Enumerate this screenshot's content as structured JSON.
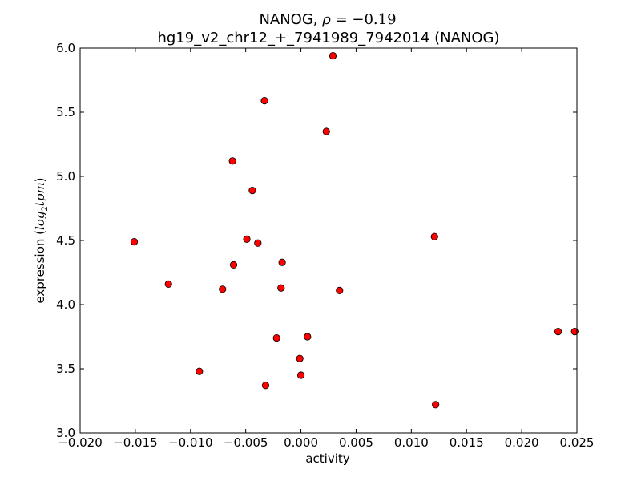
{
  "chart_data": {
    "type": "scatter",
    "title_prefix": "NANOG, ",
    "title_rho_symbol": "ρ",
    "title_rho_equals": " = ",
    "title_rho_value": "−0.19",
    "subtitle": "hg19_v2_chr12_+_7941989_7942014 (NANOG)",
    "xlabel": "activity",
    "ylabel_text": "expression (",
    "ylabel_math_log": "log",
    "ylabel_math_sub": "2",
    "ylabel_math_tpm": "tpm",
    "ylabel_close": ")",
    "xlim": [
      -0.02,
      0.025
    ],
    "ylim": [
      3.0,
      6.0
    ],
    "xticks": [
      -0.02,
      -0.015,
      -0.01,
      -0.005,
      0.0,
      0.005,
      0.01,
      0.015,
      0.02,
      0.025
    ],
    "xtick_labels": [
      "−0.020",
      "−0.015",
      "−0.010",
      "−0.005",
      "0.000",
      "0.005",
      "0.010",
      "0.015",
      "0.020",
      "0.025"
    ],
    "yticks": [
      3.0,
      3.5,
      4.0,
      4.5,
      5.0,
      5.5,
      6.0
    ],
    "ytick_labels": [
      "3.0",
      "3.5",
      "4.0",
      "4.5",
      "5.0",
      "5.5",
      "6.0"
    ],
    "marker_color": "#ff0000",
    "marker_edge": "#000000",
    "points": [
      {
        "x": 0.0029,
        "y": 5.94
      },
      {
        "x": -0.0033,
        "y": 5.59
      },
      {
        "x": 0.0023,
        "y": 5.35
      },
      {
        "x": -0.0062,
        "y": 5.12
      },
      {
        "x": -0.0044,
        "y": 4.89
      },
      {
        "x": 0.0121,
        "y": 4.53
      },
      {
        "x": -0.0151,
        "y": 4.49
      },
      {
        "x": -0.0049,
        "y": 4.51
      },
      {
        "x": -0.0039,
        "y": 4.48
      },
      {
        "x": -0.0061,
        "y": 4.31
      },
      {
        "x": -0.0017,
        "y": 4.33
      },
      {
        "x": -0.012,
        "y": 4.16
      },
      {
        "x": -0.0071,
        "y": 4.12
      },
      {
        "x": -0.0018,
        "y": 4.13
      },
      {
        "x": 0.0035,
        "y": 4.11
      },
      {
        "x": 0.0233,
        "y": 3.79
      },
      {
        "x": 0.0248,
        "y": 3.79
      },
      {
        "x": 0.0006,
        "y": 3.75
      },
      {
        "x": -0.0022,
        "y": 3.74
      },
      {
        "x": -0.0001,
        "y": 3.58
      },
      {
        "x": -0.0092,
        "y": 3.48
      },
      {
        "x": 0.0,
        "y": 3.45
      },
      {
        "x": -0.0032,
        "y": 3.37
      },
      {
        "x": 0.0122,
        "y": 3.22
      }
    ]
  }
}
